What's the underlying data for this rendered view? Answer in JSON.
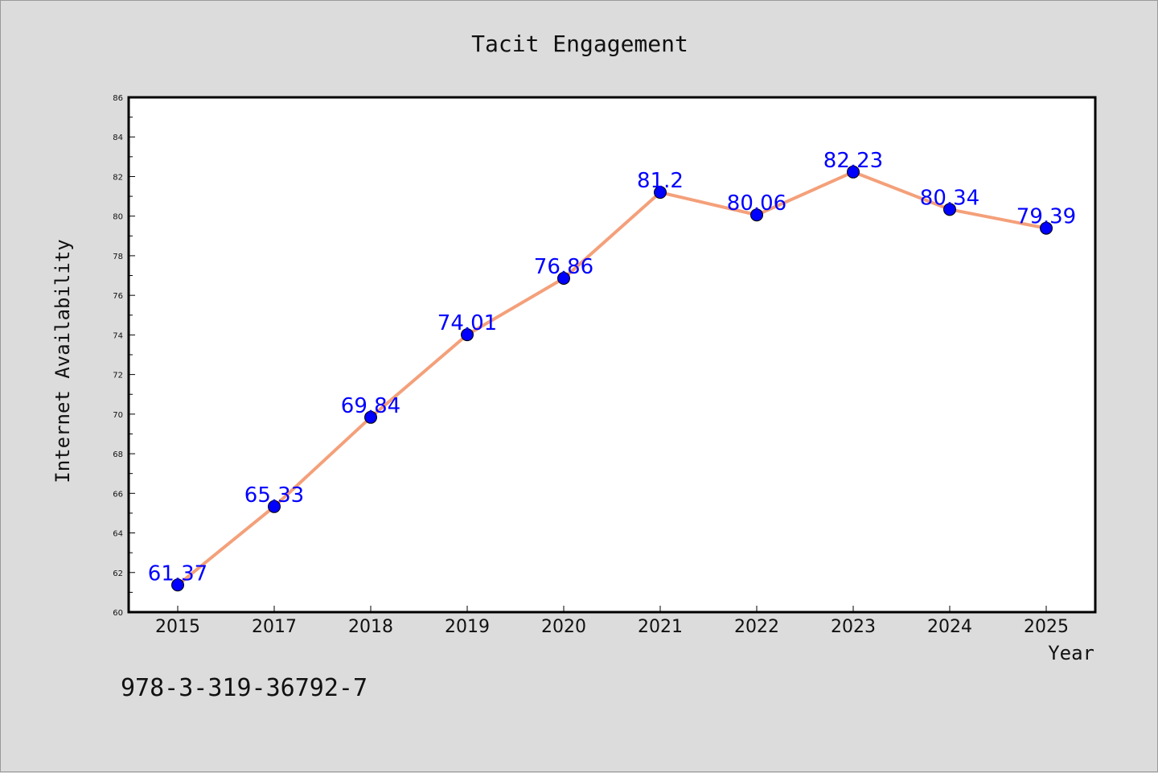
{
  "chart_data": {
    "type": "line",
    "title": "Tacit Engagement",
    "xlabel": "Year",
    "ylabel": "Internet Availability",
    "categories": [
      "2015",
      "2017",
      "2018",
      "2019",
      "2020",
      "2021",
      "2022",
      "2023",
      "2024",
      "2025"
    ],
    "series": [
      {
        "values": [
          61.37,
          65.33,
          69.84,
          74.01,
          76.86,
          81.2,
          80.06,
          82.23,
          80.34,
          79.39
        ],
        "labels": [
          "61.37",
          "65.33",
          "69.84",
          "74.01",
          "76.86",
          "81.2",
          "80.06",
          "82.23",
          "80.34",
          "79.39"
        ],
        "line_color": "#f4a07a",
        "marker_color": "#0000ff"
      }
    ],
    "ylim": [
      60,
      86
    ],
    "yticks": [
      "60",
      "62",
      "64",
      "66",
      "68",
      "70",
      "72",
      "74",
      "76",
      "78",
      "80",
      "82",
      "84",
      "86"
    ],
    "grid": false,
    "legend": "none"
  },
  "footer_code": "978-3-319-36792-7"
}
